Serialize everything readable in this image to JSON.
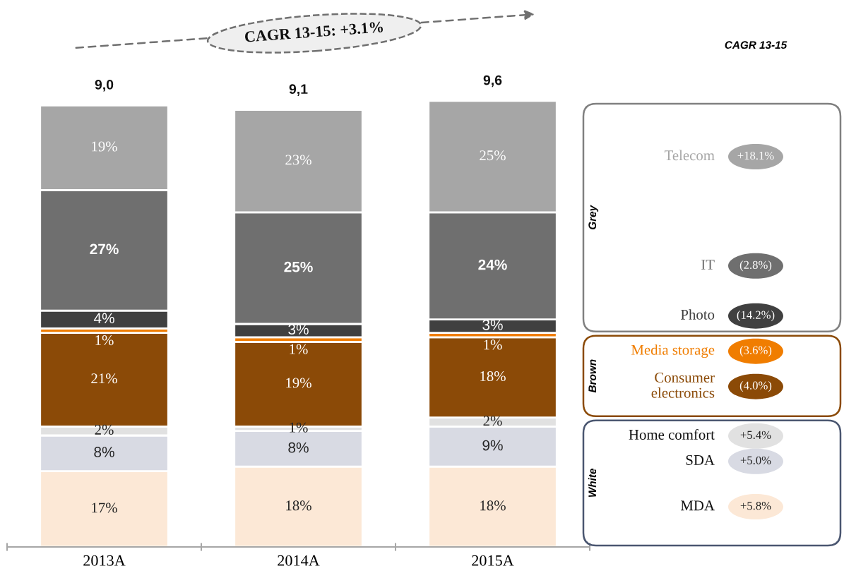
{
  "chart_data": {
    "type": "bar",
    "stacked": true,
    "categories": [
      "2013A",
      "2014A",
      "2015A"
    ],
    "series": [
      {
        "name": "MDA",
        "color": "#fce8d6",
        "values": [
          17,
          18,
          18
        ],
        "value_labels": [
          "17%",
          "18%",
          "18%"
        ]
      },
      {
        "name": "SDA",
        "color": "#d8dae3",
        "values": [
          8,
          8,
          9
        ],
        "value_labels": [
          "8%",
          "8%",
          "9%"
        ]
      },
      {
        "name": "Home comfort",
        "color": "#e1e1e1",
        "values": [
          2,
          1,
          2
        ],
        "value_labels": [
          "2%",
          "1%",
          "2%"
        ]
      },
      {
        "name": "Consumer electronics",
        "color": "#8b4a07",
        "values": [
          21,
          19,
          18
        ],
        "value_labels": [
          "21%",
          "19%",
          "18%"
        ]
      },
      {
        "name": "Media storage",
        "color": "#f07d00",
        "values": [
          1,
          1,
          1
        ],
        "value_labels": [
          "1%",
          "1%",
          "1%"
        ]
      },
      {
        "name": "Photo",
        "color": "#404040",
        "values": [
          4,
          3,
          3
        ],
        "value_labels": [
          "4%",
          "3%",
          "3%"
        ]
      },
      {
        "name": "IT",
        "color": "#6f6f6f",
        "values": [
          27,
          25,
          24
        ],
        "value_labels": [
          "27%",
          "25%",
          "24%"
        ]
      },
      {
        "name": "Telecom",
        "color": "#a6a6a6",
        "values": [
          19,
          23,
          25
        ],
        "value_labels": [
          "19%",
          "23%",
          "25%"
        ]
      }
    ],
    "legend": "right",
    "legend_title": "CAGR 13-15",
    "annotations": [
      "CAGR 13-15: +3.1%",
      "Grey",
      "Brown",
      "White",
      "+5.8%",
      "+5.0%",
      "+5.4%",
      "(4.0%)",
      "(3.6%)",
      "(14.2%)",
      "(2.8%)",
      "+18.1%",
      {
        "text": "9,0",
        "x": "2013A",
        "y": 99
      },
      {
        "text": "9,1",
        "x": "2014A",
        "y": 98
      },
      {
        "text": "9,6",
        "x": "2015A",
        "y": 100
      }
    ]
  }
}
